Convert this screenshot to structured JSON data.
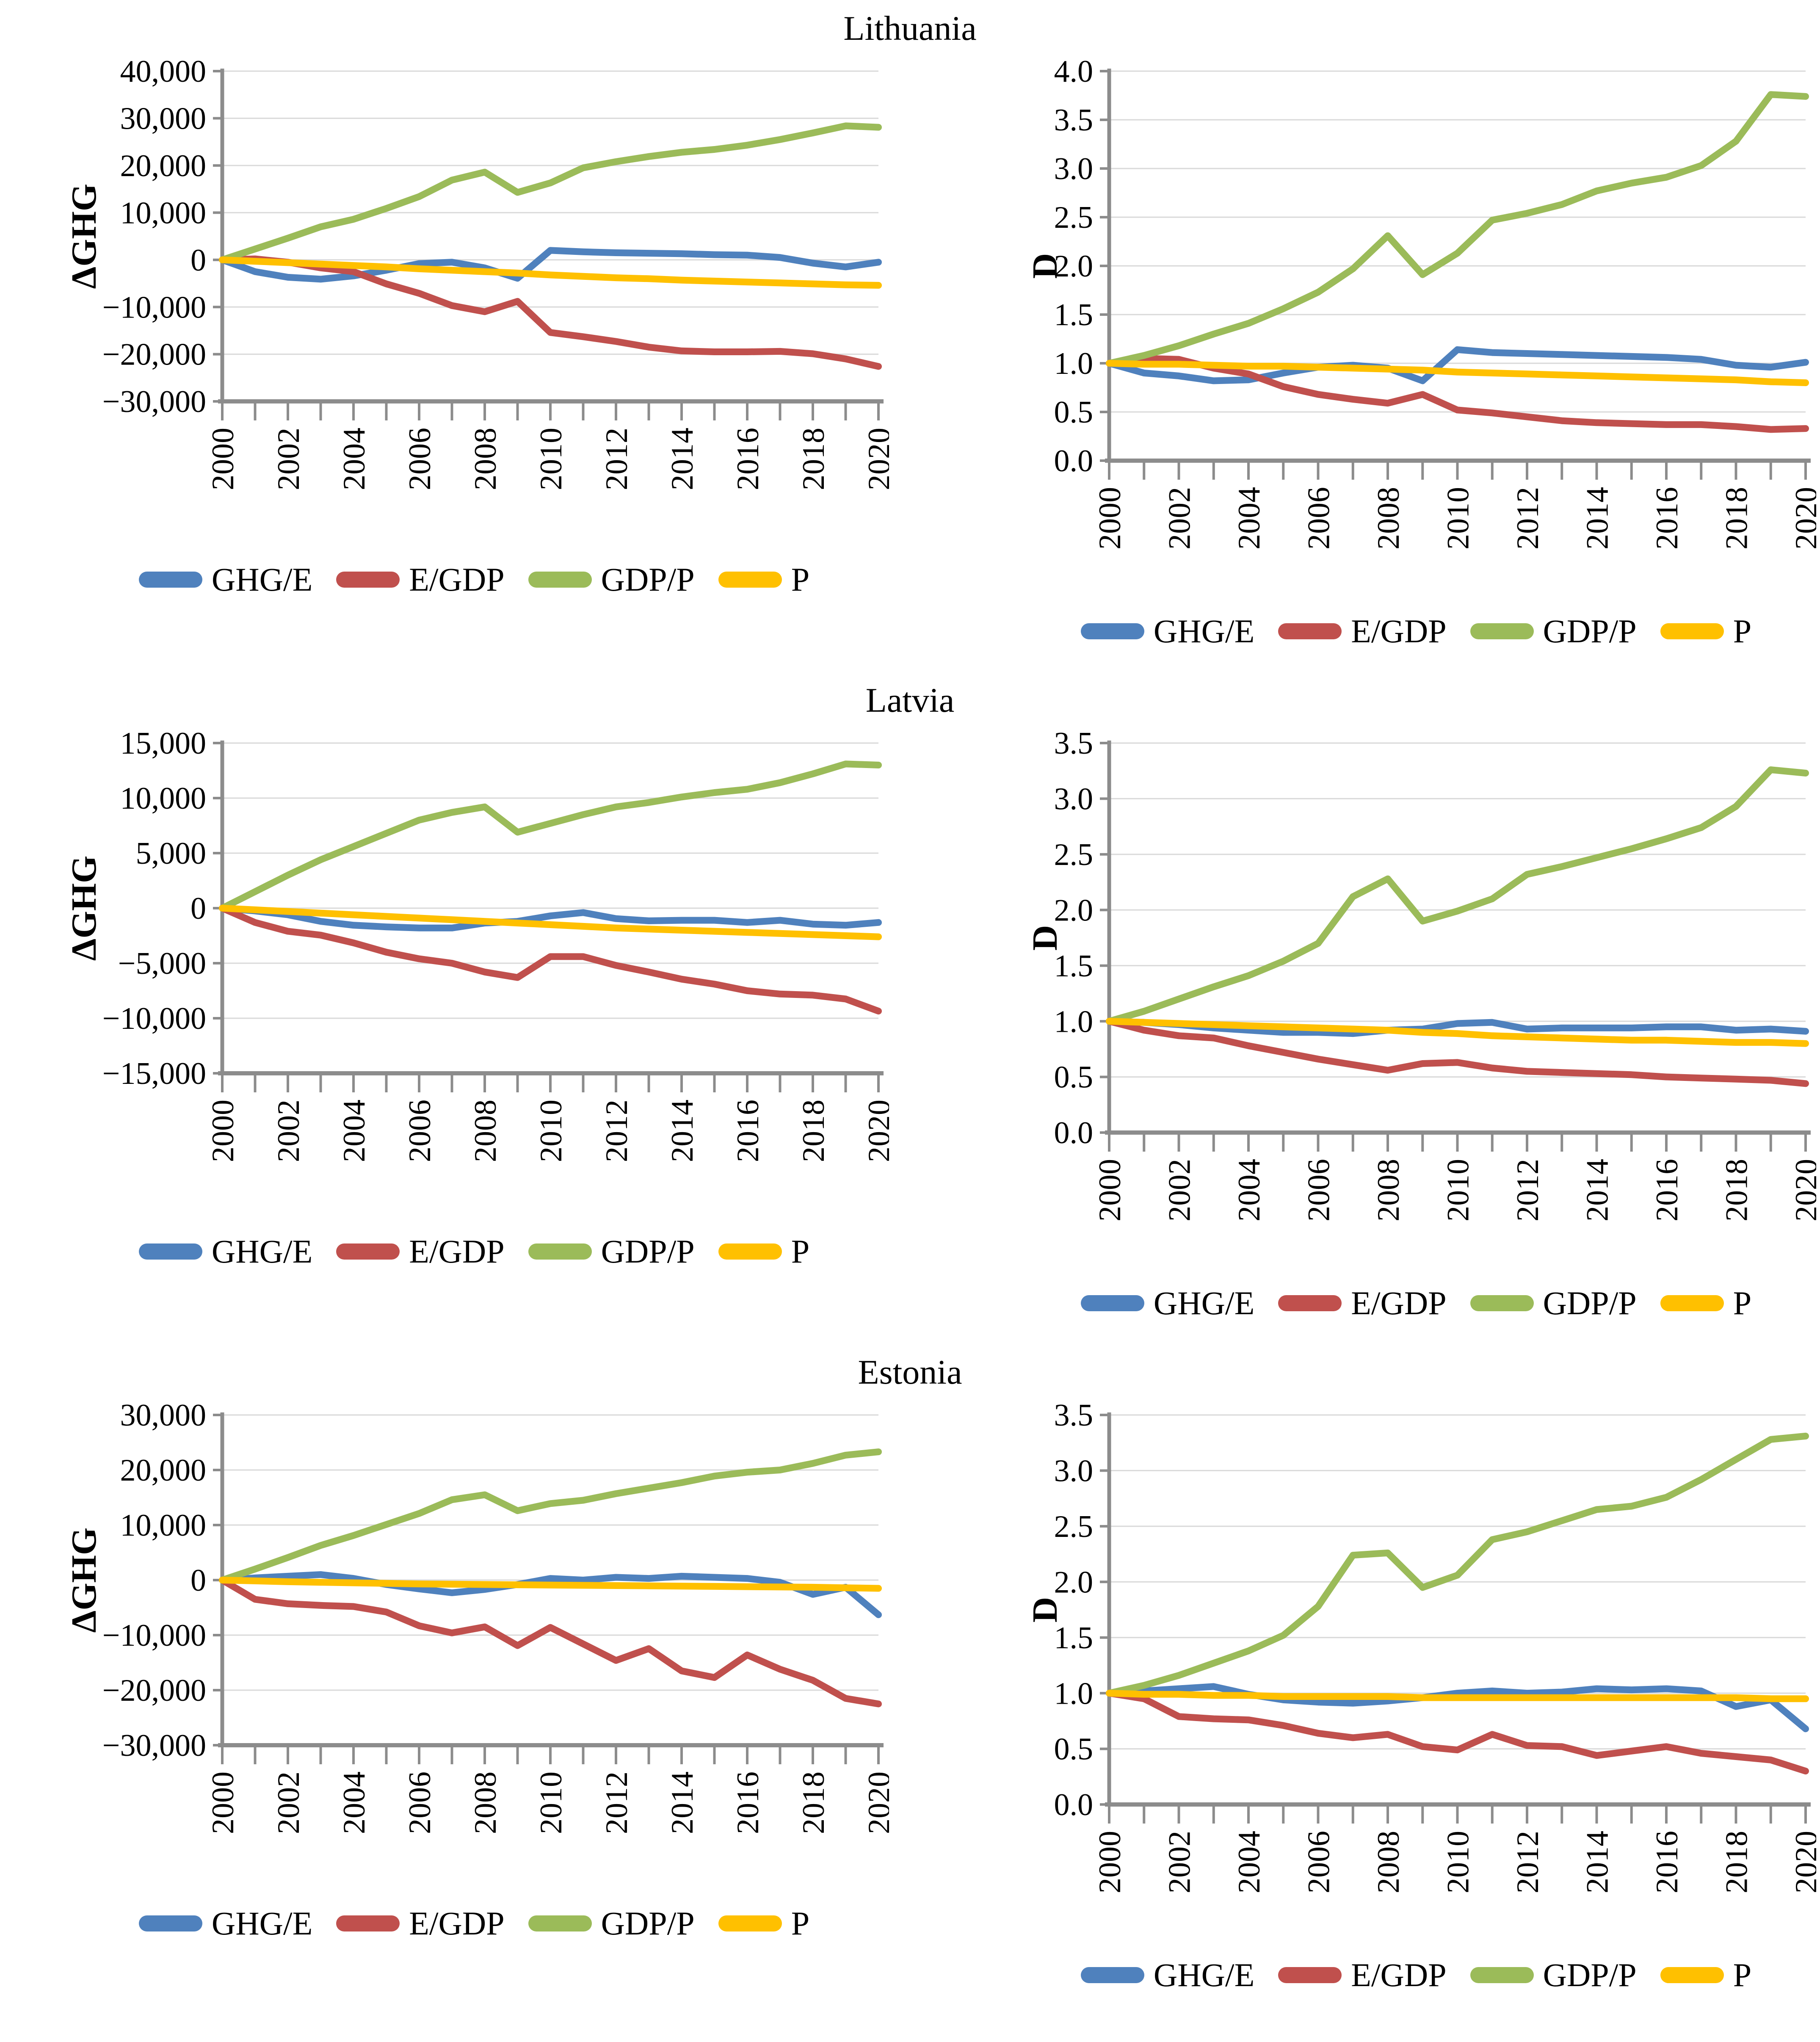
{
  "figure": {
    "background": "#FFFFFF",
    "text_color": "#000000",
    "grid_color": "#D9D9D9",
    "axis_color": "#8C8C8C"
  },
  "sections": [
    {
      "title": "Lithuania"
    },
    {
      "title": "Latvia"
    },
    {
      "title": "Estonia"
    }
  ],
  "legend_labels": [
    "GHG/E",
    "E/GDP",
    "GDP/P",
    "P"
  ],
  "series_colors": {
    "GHG/E": "#4F81BD",
    "E/GDP": "#C0504D",
    "GDP/P": "#9BBB59",
    "P": "#FFC000"
  },
  "chart_data": [
    {
      "country": "Lithuania",
      "panel": "delta",
      "type": "line",
      "ylabel": "ΔGHG",
      "ylim": [
        -30000,
        40000
      ],
      "ytick_step": 10000,
      "yformat": "thousands",
      "xlabel": "",
      "grid": true,
      "legend_position": "bottom",
      "xtick_label_step": 2,
      "x": [
        2000,
        2001,
        2002,
        2003,
        2004,
        2005,
        2006,
        2007,
        2008,
        2009,
        2010,
        2011,
        2012,
        2013,
        2014,
        2015,
        2016,
        2017,
        2018,
        2019,
        2020
      ],
      "series": [
        {
          "name": "GHG/E",
          "values": [
            0,
            -2500,
            -3700,
            -4100,
            -3400,
            -2200,
            -800,
            -500,
            -1700,
            -3900,
            2000,
            1700,
            1500,
            1400,
            1300,
            1100,
            1000,
            500,
            -700,
            -1500,
            -500
          ]
        },
        {
          "name": "E/GDP",
          "values": [
            0,
            200,
            -500,
            -1700,
            -2500,
            -5100,
            -7100,
            -9700,
            -11000,
            -8800,
            -15400,
            -16300,
            -17300,
            -18500,
            -19300,
            -19500,
            -19500,
            -19400,
            -19900,
            -21000,
            -22600
          ]
        },
        {
          "name": "GDP/P",
          "values": [
            0,
            2300,
            4600,
            7000,
            8600,
            10900,
            13400,
            16900,
            18600,
            14300,
            16300,
            19500,
            20800,
            21900,
            22800,
            23400,
            24300,
            25500,
            26900,
            28400,
            28100
          ]
        },
        {
          "name": "P",
          "values": [
            0,
            -300,
            -600,
            -900,
            -1200,
            -1500,
            -1900,
            -2200,
            -2500,
            -2800,
            -3200,
            -3500,
            -3800,
            -4000,
            -4300,
            -4500,
            -4700,
            -4900,
            -5100,
            -5300,
            -5400
          ]
        }
      ]
    },
    {
      "country": "Lithuania",
      "panel": "index",
      "type": "line",
      "ylabel": "D",
      "ylim": [
        0,
        4.0
      ],
      "ytick_step": 0.5,
      "yformat": "decimal1",
      "xlabel": "",
      "grid": true,
      "legend_position": "bottom",
      "xtick_label_step": 2,
      "x": [
        2000,
        2001,
        2002,
        2003,
        2004,
        2005,
        2006,
        2007,
        2008,
        2009,
        2010,
        2011,
        2012,
        2013,
        2014,
        2015,
        2016,
        2017,
        2018,
        2019,
        2020
      ],
      "series": [
        {
          "name": "GHG/E",
          "values": [
            1,
            0.9,
            0.87,
            0.82,
            0.83,
            0.9,
            0.96,
            0.98,
            0.95,
            0.82,
            1.14,
            1.11,
            1.1,
            1.09,
            1.08,
            1.07,
            1.06,
            1.04,
            0.98,
            0.96,
            1.01
          ]
        },
        {
          "name": "E/GDP",
          "values": [
            1,
            1.05,
            1.04,
            0.95,
            0.89,
            0.76,
            0.68,
            0.63,
            0.59,
            0.68,
            0.52,
            0.49,
            0.45,
            0.41,
            0.39,
            0.38,
            0.37,
            0.37,
            0.35,
            0.32,
            0.33
          ]
        },
        {
          "name": "GDP/P",
          "values": [
            1,
            1.08,
            1.18,
            1.3,
            1.41,
            1.56,
            1.73,
            1.97,
            2.31,
            1.91,
            2.13,
            2.47,
            2.54,
            2.63,
            2.77,
            2.85,
            2.91,
            3.03,
            3.28,
            3.76,
            3.74
          ]
        },
        {
          "name": "P",
          "values": [
            1,
            0.99,
            0.99,
            0.98,
            0.97,
            0.97,
            0.96,
            0.95,
            0.94,
            0.93,
            0.91,
            0.9,
            0.89,
            0.88,
            0.87,
            0.86,
            0.85,
            0.84,
            0.83,
            0.81,
            0.8
          ]
        }
      ]
    },
    {
      "country": "Latvia",
      "panel": "delta",
      "type": "line",
      "ylabel": "ΔGHG",
      "ylim": [
        -15000,
        15000
      ],
      "ytick_step": 5000,
      "yformat": "thousands",
      "xlabel": "",
      "grid": true,
      "legend_position": "bottom",
      "xtick_label_step": 2,
      "x": [
        2000,
        2001,
        2002,
        2003,
        2004,
        2005,
        2006,
        2007,
        2008,
        2009,
        2010,
        2011,
        2012,
        2013,
        2014,
        2015,
        2016,
        2017,
        2018,
        2019,
        2020
      ],
      "series": [
        {
          "name": "GHG/E",
          "values": [
            0,
            -250,
            -600,
            -1200,
            -1550,
            -1700,
            -1800,
            -1800,
            -1350,
            -1200,
            -700,
            -400,
            -950,
            -1150,
            -1100,
            -1100,
            -1300,
            -1100,
            -1450,
            -1550,
            -1300
          ]
        },
        {
          "name": "E/GDP",
          "values": [
            0,
            -1300,
            -2100,
            -2450,
            -3150,
            -4000,
            -4600,
            -5000,
            -5800,
            -6300,
            -4400,
            -4400,
            -5200,
            -5800,
            -6450,
            -6900,
            -7500,
            -7800,
            -7900,
            -8250,
            -9350
          ]
        },
        {
          "name": "GDP/P",
          "values": [
            0,
            1500,
            3000,
            4400,
            5600,
            6800,
            8000,
            8700,
            9200,
            6900,
            7700,
            8500,
            9200,
            9600,
            10100,
            10500,
            10800,
            11400,
            12200,
            13100,
            13000
          ]
        },
        {
          "name": "P",
          "values": [
            0,
            -150,
            -300,
            -450,
            -600,
            -750,
            -900,
            -1050,
            -1200,
            -1350,
            -1500,
            -1650,
            -1800,
            -1900,
            -2000,
            -2100,
            -2200,
            -2300,
            -2400,
            -2500,
            -2600
          ]
        }
      ]
    },
    {
      "country": "Latvia",
      "panel": "index",
      "type": "line",
      "ylabel": "D",
      "ylim": [
        0,
        3.5
      ],
      "ytick_step": 0.5,
      "yformat": "decimal1",
      "xlabel": "",
      "grid": true,
      "legend_position": "bottom",
      "xtick_label_step": 2,
      "x": [
        2000,
        2001,
        2002,
        2003,
        2004,
        2005,
        2006,
        2007,
        2008,
        2009,
        2010,
        2011,
        2012,
        2013,
        2014,
        2015,
        2016,
        2017,
        2018,
        2019,
        2020
      ],
      "series": [
        {
          "name": "GHG/E",
          "values": [
            1,
            0.99,
            0.97,
            0.94,
            0.92,
            0.9,
            0.9,
            0.89,
            0.92,
            0.93,
            0.98,
            0.99,
            0.93,
            0.94,
            0.94,
            0.94,
            0.95,
            0.95,
            0.92,
            0.93,
            0.91
          ]
        },
        {
          "name": "E/GDP",
          "values": [
            1,
            0.92,
            0.87,
            0.85,
            0.78,
            0.72,
            0.66,
            0.61,
            0.56,
            0.62,
            0.63,
            0.58,
            0.55,
            0.54,
            0.53,
            0.52,
            0.5,
            0.49,
            0.48,
            0.47,
            0.44
          ]
        },
        {
          "name": "GDP/P",
          "values": [
            1,
            1.09,
            1.2,
            1.31,
            1.41,
            1.54,
            1.7,
            2.12,
            2.28,
            1.9,
            1.99,
            2.1,
            2.32,
            2.39,
            2.47,
            2.55,
            2.64,
            2.74,
            2.93,
            3.26,
            3.23
          ]
        },
        {
          "name": "P",
          "values": [
            1,
            0.99,
            0.98,
            0.97,
            0.96,
            0.95,
            0.94,
            0.93,
            0.92,
            0.9,
            0.89,
            0.87,
            0.86,
            0.85,
            0.84,
            0.83,
            0.83,
            0.82,
            0.81,
            0.81,
            0.8
          ]
        }
      ]
    },
    {
      "country": "Estonia",
      "panel": "delta",
      "type": "line",
      "ylabel": "ΔGHG",
      "ylim": [
        -30000,
        30000
      ],
      "ytick_step": 10000,
      "yformat": "thousands",
      "xlabel": "",
      "grid": true,
      "legend_position": "bottom",
      "xtick_label_step": 2,
      "x": [
        2000,
        2001,
        2002,
        2003,
        2004,
        2005,
        2006,
        2007,
        2008,
        2009,
        2010,
        2011,
        2012,
        2013,
        2014,
        2015,
        2016,
        2017,
        2018,
        2019,
        2020
      ],
      "series": [
        {
          "name": "GHG/E",
          "values": [
            0,
            400,
            700,
            1000,
            300,
            -800,
            -1600,
            -2300,
            -1700,
            -800,
            300,
            0,
            500,
            300,
            700,
            500,
            300,
            -400,
            -2600,
            -1300,
            -6300
          ]
        },
        {
          "name": "E/GDP",
          "values": [
            0,
            -3500,
            -4300,
            -4600,
            -4800,
            -5800,
            -8300,
            -9600,
            -8500,
            -11900,
            -8600,
            -11600,
            -14600,
            -12450,
            -16500,
            -17700,
            -13600,
            -16200,
            -18200,
            -21500,
            -22500
          ]
        },
        {
          "name": "GDP/P",
          "values": [
            0,
            2000,
            4100,
            6300,
            8100,
            10100,
            12100,
            14600,
            15500,
            12600,
            13900,
            14500,
            15700,
            16700,
            17700,
            18900,
            19600,
            20000,
            21200,
            22700,
            23300
          ]
        },
        {
          "name": "P",
          "values": [
            0,
            -150,
            -300,
            -400,
            -500,
            -600,
            -700,
            -750,
            -800,
            -850,
            -900,
            -950,
            -1000,
            -1050,
            -1100,
            -1150,
            -1200,
            -1250,
            -1300,
            -1400,
            -1500
          ]
        }
      ]
    },
    {
      "country": "Estonia",
      "panel": "index",
      "type": "line",
      "ylabel": "D",
      "ylim": [
        0,
        3.5
      ],
      "ytick_step": 0.5,
      "yformat": "decimal1",
      "xlabel": "",
      "grid": true,
      "legend_position": "bottom",
      "xtick_label_step": 2,
      "x": [
        2000,
        2001,
        2002,
        2003,
        2004,
        2005,
        2006,
        2007,
        2008,
        2009,
        2010,
        2011,
        2012,
        2013,
        2014,
        2015,
        2016,
        2017,
        2018,
        2019,
        2020
      ],
      "series": [
        {
          "name": "GHG/E",
          "values": [
            1,
            1.02,
            1.04,
            1.06,
            0.99,
            0.94,
            0.92,
            0.91,
            0.93,
            0.96,
            1.0,
            1.02,
            1.0,
            1.01,
            1.04,
            1.03,
            1.04,
            1.02,
            0.88,
            0.94,
            0.68
          ]
        },
        {
          "name": "E/GDP",
          "values": [
            1,
            0.95,
            0.79,
            0.77,
            0.76,
            0.71,
            0.64,
            0.6,
            0.63,
            0.52,
            0.49,
            0.63,
            0.53,
            0.52,
            0.44,
            0.48,
            0.52,
            0.46,
            0.43,
            0.4,
            0.3
          ]
        },
        {
          "name": "GDP/P",
          "values": [
            1,
            1.07,
            1.16,
            1.27,
            1.38,
            1.52,
            1.78,
            2.24,
            2.26,
            1.95,
            2.06,
            2.38,
            2.45,
            2.55,
            2.65,
            2.68,
            2.76,
            2.92,
            3.1,
            3.28,
            3.31
          ]
        },
        {
          "name": "P",
          "values": [
            1,
            0.99,
            0.99,
            0.98,
            0.98,
            0.97,
            0.97,
            0.97,
            0.97,
            0.96,
            0.96,
            0.96,
            0.96,
            0.96,
            0.96,
            0.96,
            0.96,
            0.96,
            0.96,
            0.95,
            0.95
          ]
        }
      ]
    }
  ]
}
